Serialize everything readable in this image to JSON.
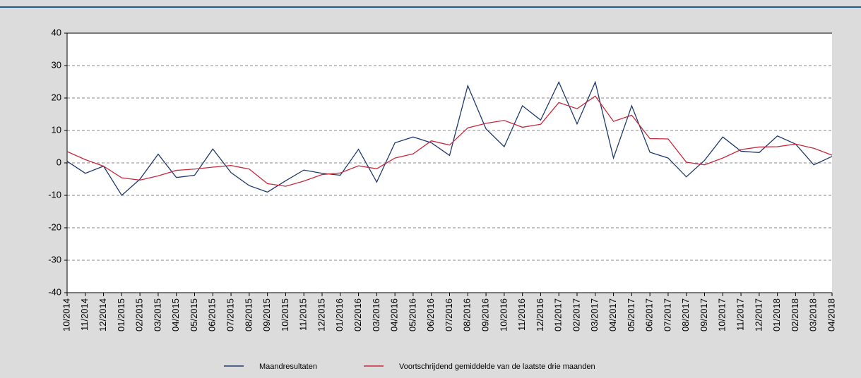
{
  "chart_data": {
    "type": "line",
    "categories": [
      "10/2014",
      "11/2014",
      "12/2014",
      "01/2015",
      "02/2015",
      "03/2015",
      "04/2015",
      "05/2015",
      "06/2015",
      "07/2015",
      "08/2015",
      "09/2015",
      "10/2015",
      "11/2015",
      "12/2015",
      "01/2016",
      "02/2016",
      "03/2016",
      "04/2016",
      "05/2016",
      "06/2016",
      "07/2016",
      "08/2016",
      "09/2016",
      "10/2016",
      "11/2016",
      "12/2016",
      "01/2017",
      "02/2017",
      "03/2017",
      "04/2017",
      "05/2017",
      "06/2017",
      "07/2017",
      "08/2017",
      "09/2017",
      "10/2017",
      "11/2017",
      "12/2017",
      "01/2018",
      "02/2018",
      "03/2018",
      "04/2018"
    ],
    "series": [
      {
        "name": "Maandresultaten",
        "color": "#1f3a6e",
        "values": [
          0.5,
          -3.2,
          -1,
          -10,
          -5,
          2.7,
          -4.5,
          -3.8,
          4.3,
          -3,
          -7,
          -9,
          -5.5,
          -2.2,
          -3.2,
          -3.8,
          4.2,
          -5.9,
          6.2,
          8,
          6.2,
          2.3,
          23.8,
          10.5,
          5,
          17.6,
          13.2,
          24.9,
          12,
          24.9,
          1.5,
          17.6,
          3.3,
          1.5,
          -4.3,
          0.8,
          8,
          3.6,
          3.2,
          8.3,
          5.8,
          -0.6,
          2
        ]
      },
      {
        "name": "Voortschrijdend gemiddelde van de laatste drie maanden",
        "color": "#c8283c",
        "values": [
          3.5,
          1,
          -1,
          -4.6,
          -5.3,
          -4,
          -2.3,
          -1.9,
          -1.3,
          -0.8,
          -1.9,
          -6.4,
          -7.2,
          -5.6,
          -3.6,
          -3.1,
          -0.9,
          -1.8,
          1.5,
          2.8,
          6.8,
          5.5,
          10.8,
          12.2,
          13.1,
          11,
          11.9,
          18.6,
          16.7,
          20.6,
          12.8,
          14.7,
          7.5,
          7.4,
          0.2,
          -0.6,
          1.5,
          4.1,
          4.9,
          5,
          5.8,
          4.5,
          2.4
        ]
      }
    ],
    "ylim": [
      -40,
      40
    ],
    "yticks": [
      -40,
      -30,
      -20,
      -10,
      0,
      10,
      20,
      30,
      40
    ],
    "grid": true
  }
}
